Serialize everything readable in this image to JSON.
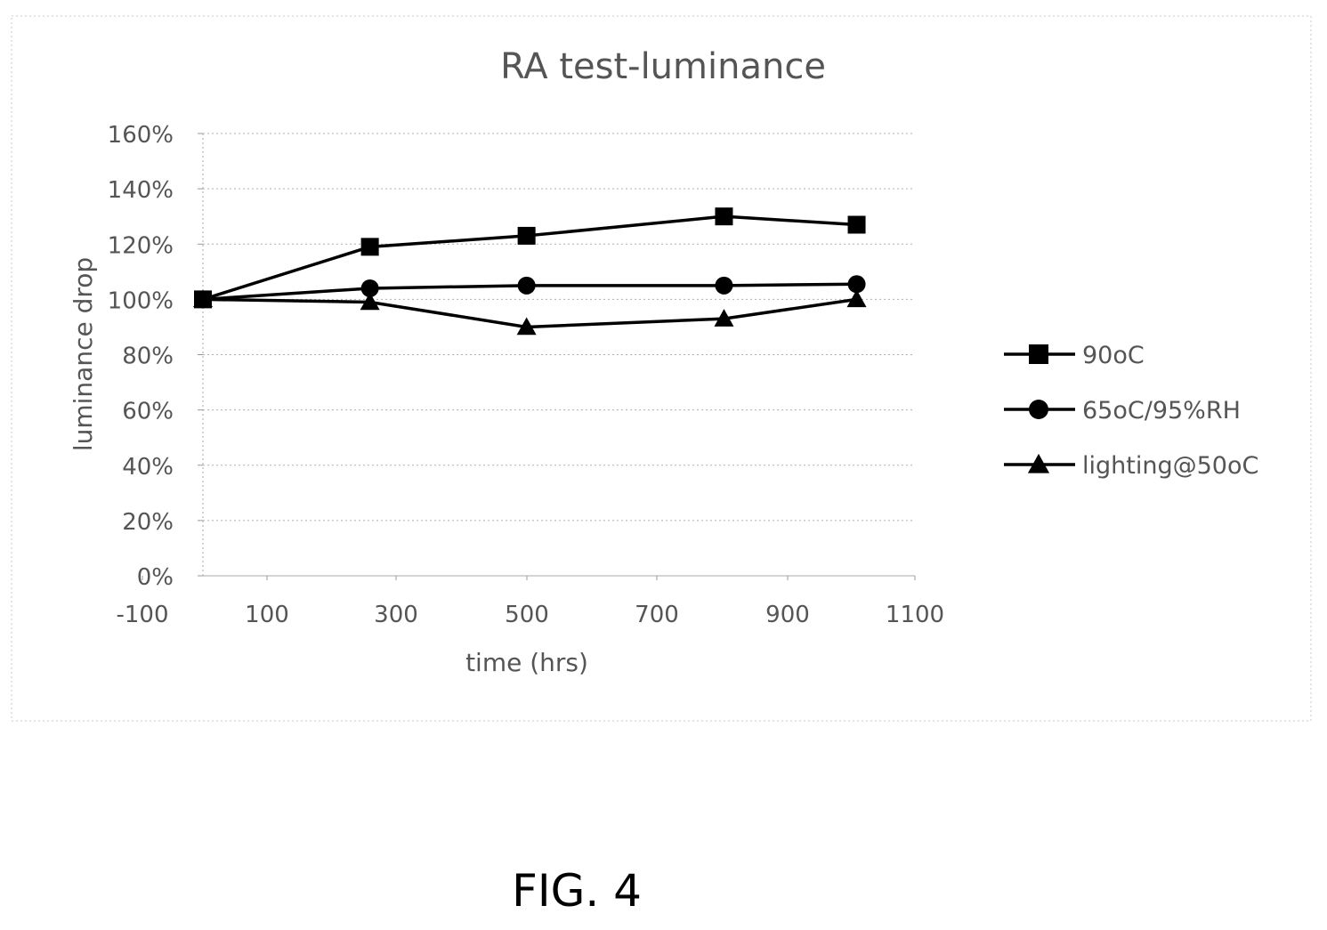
{
  "figure_label": "FIG. 4",
  "chart_data": {
    "type": "line",
    "title": "RA test-luminance",
    "xlabel": "time (hrs)",
    "ylabel": "luminance drop",
    "xlim": [
      -100,
      1100
    ],
    "ylim": [
      0,
      160
    ],
    "x_ticks": [
      -100,
      100,
      300,
      500,
      700,
      900,
      1100
    ],
    "y_ticks": [
      0,
      20,
      40,
      60,
      80,
      100,
      120,
      140,
      160
    ],
    "y_unit": "%",
    "grid": "horizontal dotted",
    "legend": "right",
    "series": [
      {
        "name": "90oC",
        "marker": "square",
        "x": [
          0,
          258,
          500,
          805,
          1010
        ],
        "values": [
          100,
          119,
          123,
          130,
          127
        ]
      },
      {
        "name": "65oC/95%RH",
        "marker": "circle",
        "x": [
          0,
          258,
          500,
          805,
          1010
        ],
        "values": [
          100,
          104,
          105,
          105,
          105.5
        ]
      },
      {
        "name": "lighting@50oC",
        "marker": "triangle",
        "x": [
          0,
          258,
          500,
          805,
          1010
        ],
        "values": [
          100,
          99,
          90,
          93,
          100
        ]
      }
    ]
  }
}
